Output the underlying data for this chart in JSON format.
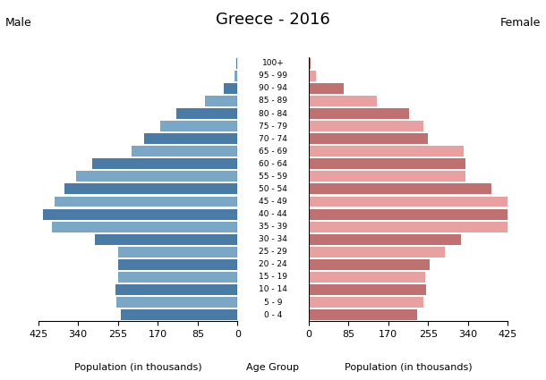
{
  "title": "Greece - 2016",
  "age_groups": [
    "0 - 4",
    "5 - 9",
    "10 - 14",
    "15 - 19",
    "20 - 24",
    "25 - 29",
    "30 - 34",
    "35 - 39",
    "40 - 44",
    "45 - 49",
    "50 - 54",
    "55 - 59",
    "60 - 64",
    "65 - 69",
    "70 - 74",
    "75 - 79",
    "80 - 84",
    "85 - 89",
    "90 - 94",
    "95 - 99",
    "100+"
  ],
  "male": [
    248,
    258,
    260,
    255,
    255,
    255,
    305,
    395,
    415,
    390,
    370,
    345,
    310,
    225,
    200,
    165,
    130,
    70,
    30,
    6,
    2
  ],
  "female": [
    232,
    245,
    250,
    248,
    258,
    290,
    325,
    430,
    435,
    430,
    390,
    335,
    335,
    330,
    255,
    245,
    215,
    145,
    75,
    15,
    5
  ],
  "male_colors": [
    "#4a7ba7",
    "#7ba7c7",
    "#4a7ba7",
    "#7ba7c7",
    "#4a7ba7",
    "#7ba7c7",
    "#4a7ba7",
    "#7ba7c7",
    "#4a7ba7",
    "#7ba7c7",
    "#4a7ba7",
    "#7ba7c7",
    "#4a7ba7",
    "#7ba7c7",
    "#4a7ba7",
    "#7ba7c7",
    "#4a7ba7",
    "#7ba7c7",
    "#4a7ba7",
    "#7ba7c7",
    "#4a7ba7"
  ],
  "female_colors": [
    "#c07070",
    "#e8a0a0",
    "#c07070",
    "#e8a0a0",
    "#c07070",
    "#e8a0a0",
    "#c07070",
    "#e8a0a0",
    "#c07070",
    "#e8a0a0",
    "#c07070",
    "#e8a0a0",
    "#c07070",
    "#e8a0a0",
    "#c07070",
    "#e8a0a0",
    "#c07070",
    "#e8a0a0",
    "#c07070",
    "#e8a0a0",
    "#c07070"
  ],
  "xlim": 425,
  "xlabel_left": "Population (in thousands)",
  "xlabel_center": "Age Group",
  "xlabel_right": "Population (in thousands)",
  "label_male": "Male",
  "label_female": "Female",
  "background_color": "#ffffff"
}
